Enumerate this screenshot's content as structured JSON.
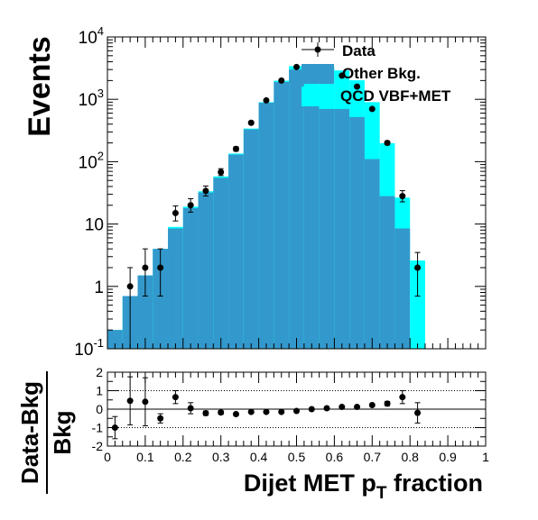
{
  "chart_data": [
    {
      "type": "bar",
      "subtype": "stacked-histogram-with-data-points",
      "ylabel": "Events",
      "yscale": "log",
      "ylim": [
        0.1,
        10000
      ],
      "xlim": [
        0,
        1
      ],
      "bin_width": 0.04,
      "bin_edges_start": [
        0.0,
        0.04,
        0.08,
        0.12,
        0.16,
        0.2,
        0.24,
        0.28,
        0.32,
        0.36,
        0.4,
        0.44,
        0.48,
        0.52,
        0.56,
        0.6,
        0.64,
        0.68,
        0.72,
        0.76,
        0.8
      ],
      "y_tick_labels": [
        {
          "base": "10",
          "exp": "-1"
        },
        {
          "base": "1",
          "exp": ""
        },
        {
          "base": "10",
          "exp": ""
        },
        {
          "base": "10",
          "exp": "2"
        },
        {
          "base": "10",
          "exp": "3"
        },
        {
          "base": "10",
          "exp": "4"
        }
      ],
      "y_tick_values": [
        0.1,
        1,
        10,
        100,
        1000,
        10000
      ],
      "legend": {
        "placement": "top-right",
        "entries": [
          "Data",
          "Other Bkg.",
          "QCD VBF+MET"
        ]
      },
      "series": [
        {
          "name": "Other Bkg.",
          "color": "#3399cc",
          "kind": "stacked-bar",
          "values": [
            0.2,
            0.7,
            1.5,
            4,
            8.5,
            18,
            32,
            55,
            130,
            330,
            880,
            1900,
            3000,
            1500,
            700,
            700,
            520,
            110,
            28,
            8.5,
            0.1
          ]
        },
        {
          "name": "QCD VBF+MET",
          "color": "#00ffff",
          "kind": "stacked-bar",
          "values": [
            0,
            0,
            0,
            0,
            0.5,
            1,
            1.5,
            3,
            5,
            10,
            20,
            90,
            400,
            1800,
            2600,
            2200,
            1500,
            790,
            170,
            18,
            2.5
          ]
        },
        {
          "name": "Data",
          "color": "#000000",
          "kind": "points-with-errors",
          "x": [
            0.06,
            0.1,
            0.14,
            0.18,
            0.22,
            0.26,
            0.3,
            0.34,
            0.38,
            0.42,
            0.46,
            0.5,
            0.62,
            0.66,
            0.7,
            0.74,
            0.78,
            0.82
          ],
          "y": [
            1,
            2,
            2,
            15,
            20,
            34,
            68,
            160,
            420,
            960,
            2000,
            3300,
            2400,
            1600,
            700,
            200,
            28,
            2
          ],
          "err_low": [
            1.0,
            1.3,
            1.3,
            3.8,
            4.5,
            5.8,
            8.2,
            12.6,
            20.5,
            31,
            44.7,
            57,
            49,
            40,
            26.5,
            14,
            5.3,
            1.3
          ],
          "err_high": [
            1.0,
            2.0,
            2.0,
            4.5,
            5.5,
            6.8,
            9.2,
            13.6,
            21.5,
            32,
            45.7,
            58,
            50,
            41,
            27.5,
            15,
            6.3,
            1.5
          ]
        }
      ]
    },
    {
      "type": "scatter",
      "subtype": "ratio-panel",
      "ylabel_numerator": "Data-Bkg",
      "ylabel_denominator": "Bkg",
      "xlabel": "Dijet MET p",
      "xlabel_sub": "T",
      "xlabel_suffix": " fraction",
      "xlim": [
        0,
        1
      ],
      "ylim": [
        -2,
        2
      ],
      "y_ticks": [
        -2,
        -1,
        0,
        1,
        2
      ],
      "x_ticks": [
        0,
        0.1,
        0.2,
        0.3,
        0.4,
        0.5,
        0.6,
        0.7,
        0.8,
        0.9,
        1
      ],
      "dotted_lines": [
        -1,
        1
      ],
      "solid_line": 0,
      "series": [
        {
          "name": "Data",
          "x": [
            0.02,
            0.06,
            0.1,
            0.14,
            0.18,
            0.22,
            0.26,
            0.3,
            0.34,
            0.38,
            0.42,
            0.46,
            0.5,
            0.54,
            0.58,
            0.62,
            0.66,
            0.7,
            0.74,
            0.78,
            0.82
          ],
          "y": [
            -1.0,
            0.45,
            0.4,
            -0.5,
            0.65,
            0.05,
            -0.22,
            -0.18,
            -0.27,
            -0.15,
            -0.15,
            -0.15,
            -0.1,
            0.0,
            0.05,
            0.12,
            0.12,
            0.22,
            0.3,
            0.65,
            -0.2
          ],
          "err": [
            0.6,
            1.3,
            1.3,
            0.25,
            0.35,
            0.3,
            0.12,
            0.1,
            0.08,
            0.05,
            0.04,
            0.04,
            0.04,
            0.05,
            0.06,
            0.05,
            0.05,
            0.06,
            0.12,
            0.35,
            0.55
          ]
        }
      ]
    }
  ]
}
